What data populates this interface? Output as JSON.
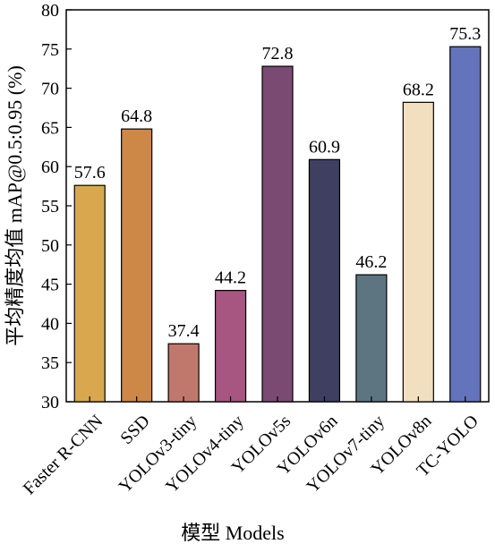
{
  "chart_data": {
    "type": "bar",
    "xlabel": "模型 Models",
    "ylabel": "平均精度均值 mAP@0.5:0.95 (%)",
    "ylim": [
      30,
      80
    ],
    "yticks": [
      30,
      35,
      40,
      45,
      50,
      55,
      60,
      65,
      70,
      75,
      80
    ],
    "grid": false,
    "categories": [
      "Faster R-CNN",
      "SSD",
      "YOLOv3-tiny",
      "YOLOv4-tiny",
      "YOLOv5s",
      "YOLOv6n",
      "YOLOv7-tiny",
      "YOLOv8n",
      "TC-YOLO"
    ],
    "values": [
      57.6,
      64.8,
      37.4,
      44.2,
      72.8,
      60.9,
      46.2,
      68.2,
      75.3
    ],
    "value_labels": [
      "57.6",
      "64.8",
      "37.4",
      "44.2",
      "72.8",
      "60.9",
      "46.2",
      "68.2",
      "75.3"
    ],
    "colors": [
      "#D9A84E",
      "#CD8747",
      "#C0786C",
      "#A65680",
      "#7B4A73",
      "#3E3F61",
      "#5D7580",
      "#F2DFC0",
      "#6373BC"
    ]
  }
}
